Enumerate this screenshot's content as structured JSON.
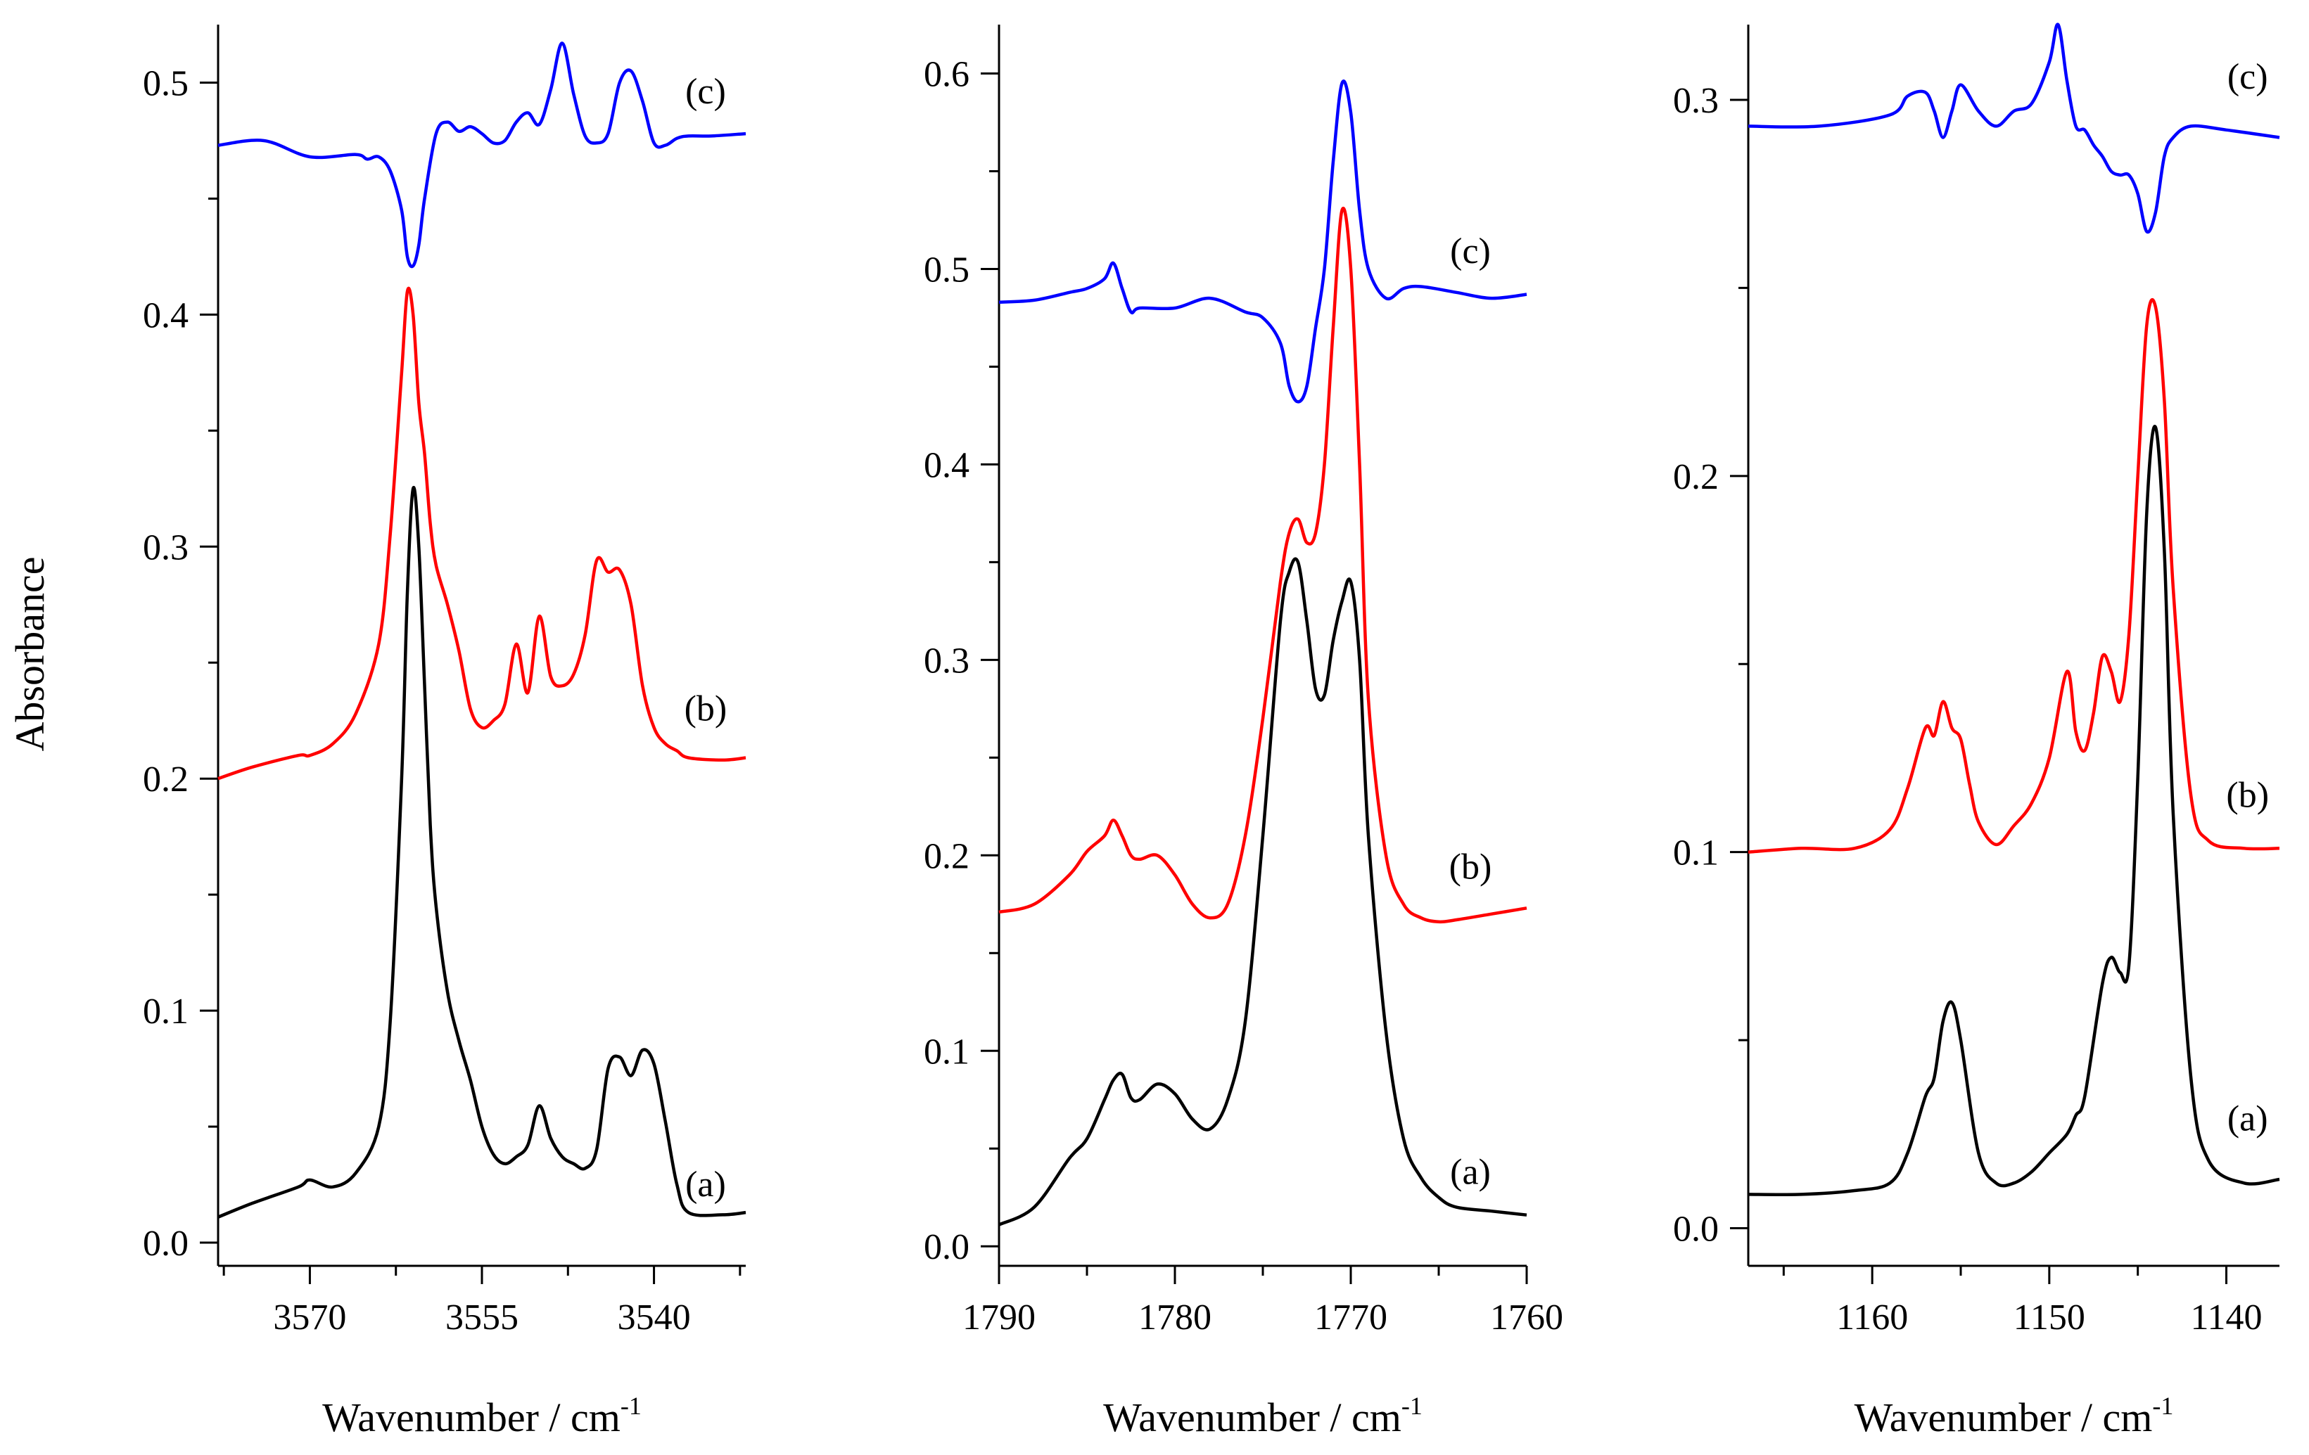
{
  "figure": {
    "ylabel": "Absorbance"
  },
  "chart_data": [
    {
      "type": "line",
      "xlabel": "Wavenumber / cm",
      "xlabel_sup": "-1",
      "xlim": [
        3578,
        3532
      ],
      "ylim": [
        -0.01,
        0.525
      ],
      "xticks": [
        3570,
        3555,
        3540
      ],
      "xtick_labels": [
        "3570",
        "3555",
        "3540"
      ],
      "yticks": [
        0.0,
        0.1,
        0.2,
        0.3,
        0.4,
        0.5
      ],
      "ytick_labels": [
        "0.0",
        "0.1",
        "0.2",
        "0.3",
        "0.4",
        "0.5"
      ],
      "series": [
        {
          "name": "(a)",
          "color": "#000000",
          "x": [
            3578,
            3575,
            3571,
            3570,
            3568,
            3566,
            3564,
            3563,
            3562,
            3561.5,
            3561,
            3560.5,
            3560,
            3559.5,
            3559,
            3558,
            3557,
            3556,
            3555,
            3554,
            3553,
            3552,
            3551,
            3550,
            3549,
            3548,
            3547,
            3546,
            3545,
            3544,
            3543,
            3542,
            3541,
            3540,
            3539,
            3538,
            3537,
            3534,
            3532
          ],
          "y": [
            0.011,
            0.017,
            0.024,
            0.027,
            0.024,
            0.03,
            0.05,
            0.095,
            0.2,
            0.28,
            0.325,
            0.3,
            0.24,
            0.18,
            0.145,
            0.108,
            0.087,
            0.07,
            0.05,
            0.038,
            0.034,
            0.037,
            0.042,
            0.059,
            0.045,
            0.037,
            0.034,
            0.032,
            0.04,
            0.075,
            0.08,
            0.072,
            0.083,
            0.077,
            0.052,
            0.025,
            0.013,
            0.012,
            0.013
          ]
        },
        {
          "name": "(b)",
          "color": "#ff0000",
          "x": [
            3578,
            3575,
            3571,
            3570,
            3568,
            3566,
            3564,
            3563,
            3562,
            3561.5,
            3561,
            3560.5,
            3560,
            3559.5,
            3559,
            3558,
            3557,
            3556,
            3555,
            3554,
            3553,
            3552,
            3551,
            3550,
            3549,
            3548,
            3547,
            3546,
            3545,
            3544,
            3543,
            3542,
            3541,
            3540,
            3539,
            3538,
            3537,
            3534,
            3532
          ],
          "y": [
            0.2,
            0.205,
            0.21,
            0.21,
            0.215,
            0.228,
            0.258,
            0.305,
            0.375,
            0.41,
            0.4,
            0.362,
            0.34,
            0.31,
            0.292,
            0.275,
            0.255,
            0.23,
            0.222,
            0.225,
            0.232,
            0.258,
            0.237,
            0.27,
            0.244,
            0.24,
            0.245,
            0.262,
            0.294,
            0.289,
            0.29,
            0.275,
            0.24,
            0.222,
            0.215,
            0.212,
            0.209,
            0.208,
            0.209
          ]
        },
        {
          "name": "(c)",
          "color": "#0000ff",
          "x": [
            3578,
            3574,
            3570,
            3566,
            3565,
            3564,
            3563,
            3562,
            3561.5,
            3561,
            3560.5,
            3560,
            3559,
            3558,
            3557,
            3556,
            3555,
            3554,
            3553,
            3552,
            3551,
            3550,
            3549,
            3548,
            3547,
            3546,
            3545,
            3544,
            3543,
            3542,
            3541,
            3540,
            3539,
            3538,
            3537,
            3535,
            3532
          ],
          "y": [
            0.473,
            0.475,
            0.468,
            0.469,
            0.467,
            0.468,
            0.462,
            0.445,
            0.425,
            0.421,
            0.43,
            0.45,
            0.478,
            0.483,
            0.479,
            0.481,
            0.478,
            0.474,
            0.475,
            0.483,
            0.487,
            0.482,
            0.497,
            0.517,
            0.495,
            0.477,
            0.474,
            0.478,
            0.5,
            0.505,
            0.492,
            0.474,
            0.473,
            0.476,
            0.477,
            0.477,
            0.478
          ]
        }
      ],
      "curve_labels": [
        {
          "text": "(a)",
          "x": 3535.5,
          "y": 0.02
        },
        {
          "text": "(b)",
          "x": 3535.5,
          "y": 0.225
        },
        {
          "text": "(c)",
          "x": 3535.5,
          "y": 0.491
        }
      ]
    },
    {
      "type": "line",
      "xlabel": "Wavenumber / cm",
      "xlabel_sup": "-1",
      "xlim": [
        1790,
        1760
      ],
      "ylim": [
        -0.01,
        0.625
      ],
      "xticks": [
        1790,
        1780,
        1770,
        1760
      ],
      "xtick_labels": [
        "1790",
        "1780",
        "1770",
        "1760"
      ],
      "yticks": [
        0.0,
        0.1,
        0.2,
        0.3,
        0.4,
        0.5,
        0.6
      ],
      "ytick_labels": [
        "0.0",
        "0.1",
        "0.2",
        "0.3",
        "0.4",
        "0.5",
        "0.6"
      ],
      "series": [
        {
          "name": "(a)",
          "color": "#000000",
          "x": [
            1790,
            1788,
            1786,
            1785,
            1784,
            1783.5,
            1783,
            1782.5,
            1782,
            1781,
            1780,
            1779,
            1778,
            1777,
            1776,
            1775,
            1774,
            1773.5,
            1773,
            1772.5,
            1772,
            1771.5,
            1771,
            1770.5,
            1770,
            1769.5,
            1769,
            1768,
            1767,
            1766,
            1765,
            1764,
            1762,
            1760
          ],
          "y": [
            0.011,
            0.02,
            0.045,
            0.055,
            0.075,
            0.085,
            0.088,
            0.076,
            0.075,
            0.083,
            0.078,
            0.065,
            0.06,
            0.075,
            0.115,
            0.21,
            0.32,
            0.345,
            0.35,
            0.32,
            0.285,
            0.282,
            0.31,
            0.33,
            0.34,
            0.3,
            0.21,
            0.11,
            0.055,
            0.035,
            0.025,
            0.02,
            0.018,
            0.016
          ]
        },
        {
          "name": "(b)",
          "color": "#ff0000",
          "x": [
            1790,
            1788,
            1786,
            1785,
            1784,
            1783.5,
            1783,
            1782.5,
            1782,
            1781,
            1780,
            1779,
            1778,
            1777,
            1776,
            1775,
            1774,
            1773.5,
            1773,
            1772.5,
            1772,
            1771.5,
            1771,
            1770.5,
            1770,
            1769.5,
            1769,
            1768,
            1767,
            1766,
            1765,
            1764,
            1762,
            1760
          ],
          "y": [
            0.171,
            0.175,
            0.19,
            0.202,
            0.21,
            0.218,
            0.21,
            0.2,
            0.198,
            0.2,
            0.19,
            0.175,
            0.168,
            0.175,
            0.21,
            0.27,
            0.34,
            0.365,
            0.372,
            0.36,
            0.365,
            0.4,
            0.47,
            0.53,
            0.5,
            0.4,
            0.28,
            0.2,
            0.175,
            0.168,
            0.166,
            0.167,
            0.17,
            0.173
          ]
        },
        {
          "name": "(c)",
          "color": "#0000ff",
          "x": [
            1790,
            1788,
            1786,
            1785,
            1784,
            1783.5,
            1783,
            1782.5,
            1782,
            1780,
            1778,
            1776,
            1775,
            1774,
            1773.5,
            1773,
            1772.5,
            1772,
            1771.5,
            1771,
            1770.5,
            1770,
            1769.5,
            1769,
            1768,
            1767,
            1766,
            1764,
            1762,
            1760
          ],
          "y": [
            0.483,
            0.484,
            0.488,
            0.49,
            0.495,
            0.503,
            0.49,
            0.478,
            0.48,
            0.48,
            0.485,
            0.478,
            0.475,
            0.462,
            0.44,
            0.432,
            0.44,
            0.47,
            0.5,
            0.555,
            0.595,
            0.58,
            0.53,
            0.5,
            0.485,
            0.49,
            0.491,
            0.488,
            0.485,
            0.487
          ]
        }
      ],
      "curve_labels": [
        {
          "text": "(a)",
          "x": 1763.2,
          "y": 0.032
        },
        {
          "text": "(b)",
          "x": 1763.2,
          "y": 0.188
        },
        {
          "text": "(c)",
          "x": 1763.2,
          "y": 0.503
        }
      ]
    },
    {
      "type": "line",
      "xlabel": "Wavenumber / cm",
      "xlabel_sup": "-1",
      "xlim": [
        1167,
        1137
      ],
      "ylim": [
        -0.01,
        0.32
      ],
      "xticks": [
        1160,
        1150,
        1140
      ],
      "xtick_labels": [
        "1160",
        "1150",
        "1140"
      ],
      "yticks": [
        0.0,
        0.1,
        0.2,
        0.3
      ],
      "ytick_labels": [
        "0.0",
        "0.1",
        "0.2",
        "0.3"
      ],
      "series": [
        {
          "name": "(a)",
          "color": "#000000",
          "x": [
            1167,
            1164,
            1161,
            1159,
            1158,
            1157,
            1156.5,
            1156,
            1155.5,
            1155,
            1154,
            1153,
            1152,
            1151,
            1150,
            1149,
            1148.5,
            1148,
            1147,
            1146.5,
            1146,
            1145.5,
            1145,
            1144.5,
            1144,
            1143.5,
            1143,
            1142,
            1141,
            1139,
            1137
          ],
          "y": [
            0.009,
            0.009,
            0.01,
            0.012,
            0.02,
            0.035,
            0.04,
            0.055,
            0.06,
            0.05,
            0.02,
            0.012,
            0.012,
            0.015,
            0.02,
            0.025,
            0.03,
            0.035,
            0.065,
            0.072,
            0.068,
            0.07,
            0.12,
            0.19,
            0.213,
            0.18,
            0.11,
            0.04,
            0.018,
            0.012,
            0.013
          ]
        },
        {
          "name": "(b)",
          "color": "#ff0000",
          "x": [
            1167,
            1164,
            1161,
            1159,
            1158,
            1157,
            1156.5,
            1156,
            1155.5,
            1155,
            1154.5,
            1154,
            1153,
            1152,
            1151,
            1150,
            1149,
            1148.5,
            1148,
            1147.5,
            1147,
            1146.5,
            1146,
            1145.5,
            1145,
            1144.5,
            1144,
            1143.5,
            1143,
            1142,
            1141,
            1139,
            1137
          ],
          "y": [
            0.1,
            0.101,
            0.101,
            0.106,
            0.117,
            0.133,
            0.131,
            0.14,
            0.133,
            0.13,
            0.118,
            0.108,
            0.102,
            0.107,
            0.113,
            0.125,
            0.148,
            0.132,
            0.127,
            0.137,
            0.152,
            0.148,
            0.14,
            0.158,
            0.2,
            0.24,
            0.245,
            0.22,
            0.17,
            0.115,
            0.103,
            0.101,
            0.101
          ]
        },
        {
          "name": "(c)",
          "color": "#0000ff",
          "x": [
            1167,
            1163,
            1159,
            1158,
            1157,
            1156.5,
            1156,
            1155.5,
            1155,
            1154,
            1153,
            1152,
            1151,
            1150,
            1149.5,
            1149,
            1148.5,
            1148,
            1147.5,
            1147,
            1146.5,
            1146,
            1145.5,
            1145,
            1144.5,
            1144,
            1143.5,
            1143,
            1142,
            1140,
            1137
          ],
          "y": [
            0.293,
            0.293,
            0.296,
            0.301,
            0.302,
            0.297,
            0.29,
            0.297,
            0.304,
            0.297,
            0.293,
            0.297,
            0.299,
            0.31,
            0.32,
            0.305,
            0.293,
            0.292,
            0.288,
            0.285,
            0.281,
            0.28,
            0.28,
            0.275,
            0.265,
            0.27,
            0.285,
            0.29,
            0.293,
            0.292,
            0.29
          ]
        }
      ],
      "curve_labels": [
        {
          "text": "(a)",
          "x": 1138.8,
          "y": 0.026
        },
        {
          "text": "(b)",
          "x": 1138.8,
          "y": 0.112
        },
        {
          "text": "(c)",
          "x": 1138.8,
          "y": 0.303
        }
      ]
    }
  ]
}
